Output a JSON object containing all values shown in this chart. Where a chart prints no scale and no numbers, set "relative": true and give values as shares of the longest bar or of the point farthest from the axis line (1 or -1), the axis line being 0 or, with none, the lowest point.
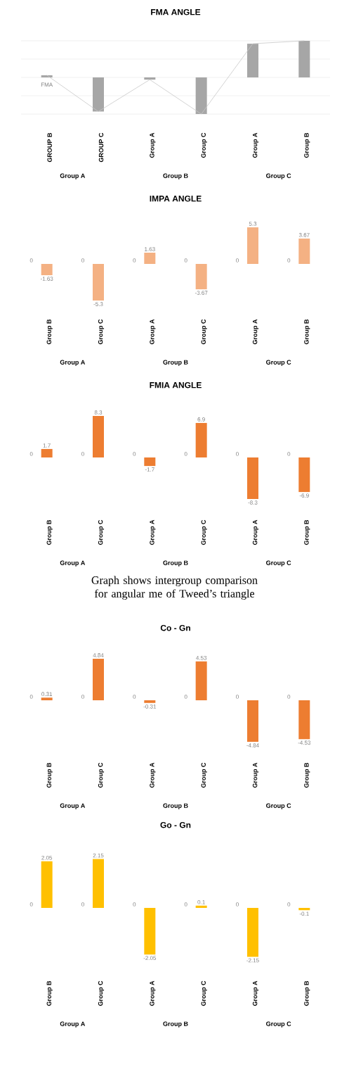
{
  "chart_data": [
    {
      "type": "bar",
      "title": "FMA ANGLE",
      "relative": true,
      "grid": true,
      "categories": [
        "GROUP B",
        "GROUP C",
        "Group A",
        "Group C",
        "Group A",
        "Group B"
      ],
      "series": [
        {
          "name": "FMA",
          "color": "#a6a6a6",
          "values": [
            0.06,
            -0.93,
            -0.06,
            -1,
            0.92,
            1
          ]
        },
        {
          "type": "line",
          "color": "#c8c8c8",
          "values": [
            0.06,
            -0.93,
            -0.06,
            -1,
            0.92,
            1
          ]
        }
      ],
      "annotations": [
        "Group A",
        "Group B",
        "Group C"
      ]
    },
    {
      "type": "bar",
      "title": "IMPA ANGLE",
      "data_labels": true,
      "categories": [
        "Group B",
        "Group C",
        "Group A",
        "Group C",
        "Group A",
        "Group B"
      ],
      "series": [
        {
          "values": [
            0,
            0,
            0,
            0,
            0,
            0
          ]
        },
        {
          "color": "#f4b183",
          "values": [
            -1.63,
            -5.3,
            1.63,
            -3.67,
            5.3,
            3.67
          ]
        }
      ],
      "annotations": [
        "Group A",
        "Group B",
        "Group C"
      ]
    },
    {
      "type": "bar",
      "title": "FMIA ANGLE",
      "data_labels": true,
      "categories": [
        "Group B",
        "Group C",
        "Group A",
        "Group C",
        "Group A",
        "Group B"
      ],
      "series": [
        {
          "values": [
            0,
            0,
            0,
            0,
            0,
            0
          ]
        },
        {
          "color": "#ed7d31",
          "values": [
            1.7,
            8.3,
            -1.7,
            6.9,
            -8.3,
            -6.9
          ]
        }
      ],
      "annotations": [
        "Group A",
        "Group B",
        "Group C"
      ]
    },
    {
      "type": "other",
      "title": "Graph shows intergroup comparison for angular me of Tweed’s triangle"
    },
    {
      "type": "bar",
      "title": "Co - Gn",
      "data_labels": true,
      "categories": [
        "Group B",
        "Group C",
        "Group A",
        "Group C",
        "Group A",
        "Group B"
      ],
      "series": [
        {
          "values": [
            0,
            0,
            0,
            0,
            0,
            0
          ]
        },
        {
          "color": "#ed7d31",
          "values": [
            0.31,
            4.84,
            -0.31,
            4.53,
            -4.84,
            -4.53
          ]
        }
      ],
      "annotations": [
        "Group A",
        "Group B",
        "Group C"
      ]
    },
    {
      "type": "bar",
      "title": "Go - Gn",
      "data_labels": true,
      "categories": [
        "Group B",
        "Group C",
        "Group A",
        "Group C",
        "Group A",
        "Group B"
      ],
      "series": [
        {
          "values": [
            0,
            0,
            0,
            0,
            0,
            0
          ]
        },
        {
          "color": "#ffc000",
          "values": [
            2.05,
            2.15,
            -2.05,
            0.1,
            -2.15,
            -0.1
          ]
        }
      ],
      "annotations": [
        "Group A",
        "Group B",
        "Group C"
      ]
    }
  ]
}
